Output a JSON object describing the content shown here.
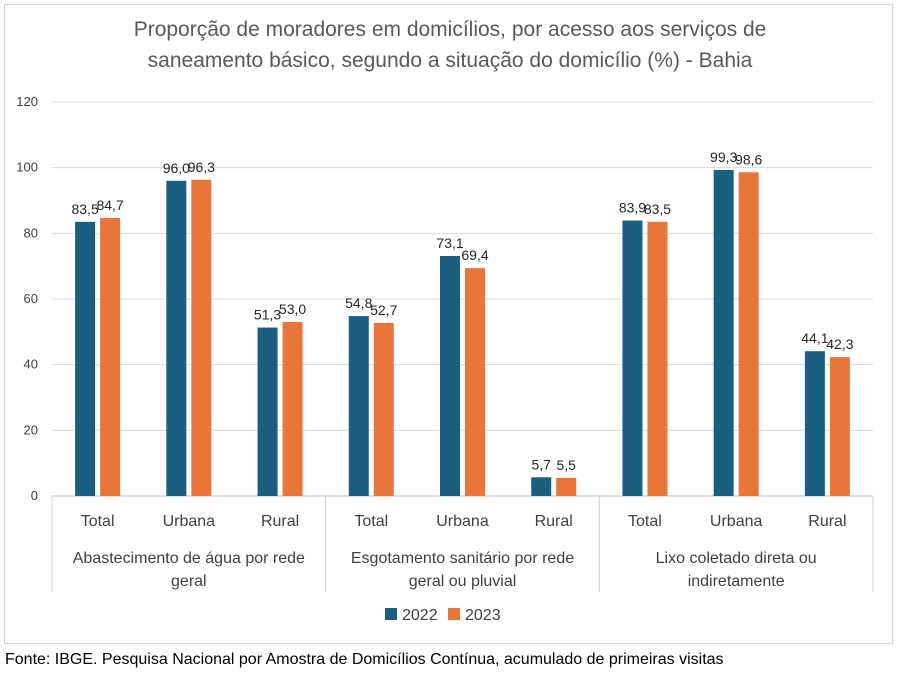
{
  "title_lines": [
    "Proporção de moradores em domicílios, por acesso aos serviços de",
    "saneamento básico, segundo a situação do domicílio (%) - Bahia"
  ],
  "source": "Fonte: IBGE. Pesquisa Nacional por Amostra de Domicílios Contínua, acumulado de primeiras visitas",
  "colors": {
    "2022": "#1a5e80",
    "2023": "#e8763a",
    "grid": "#d9d9d9",
    "text": "#404040"
  },
  "chart_data": {
    "type": "bar",
    "ylim": [
      0,
      120
    ],
    "yticks": [
      0,
      20,
      40,
      60,
      80,
      100,
      120
    ],
    "groups": [
      {
        "label_lines": [
          "Abastecimento de água por rede",
          "geral"
        ],
        "categories": [
          "Total",
          "Urbana",
          "Rural"
        ]
      },
      {
        "label_lines": [
          "Esgotamento sanitário por rede",
          "geral ou pluvial"
        ],
        "categories": [
          "Total",
          "Urbana",
          "Rural"
        ]
      },
      {
        "label_lines": [
          "Lixo coletado direta ou",
          "indiretamente"
        ],
        "categories": [
          "Total",
          "Urbana",
          "Rural"
        ]
      }
    ],
    "series": [
      {
        "name": "2022",
        "values": [
          83.5,
          96.0,
          51.3,
          54.8,
          73.1,
          5.7,
          83.9,
          99.3,
          44.1
        ],
        "labels": [
          "83,5",
          "96,0",
          "51,3",
          "54,8",
          "73,1",
          "5,7",
          "83,9",
          "99,3",
          "44,1"
        ]
      },
      {
        "name": "2023",
        "values": [
          84.7,
          96.3,
          53.0,
          52.7,
          69.4,
          5.5,
          83.5,
          98.6,
          42.3
        ],
        "labels": [
          "84,7",
          "96,3",
          "53,0",
          "52,7",
          "69,4",
          "5,5",
          "83,5",
          "98,6",
          "42,3"
        ]
      }
    ],
    "legend": {
      "position": "bottom",
      "entries": [
        "2022",
        "2023"
      ]
    }
  }
}
